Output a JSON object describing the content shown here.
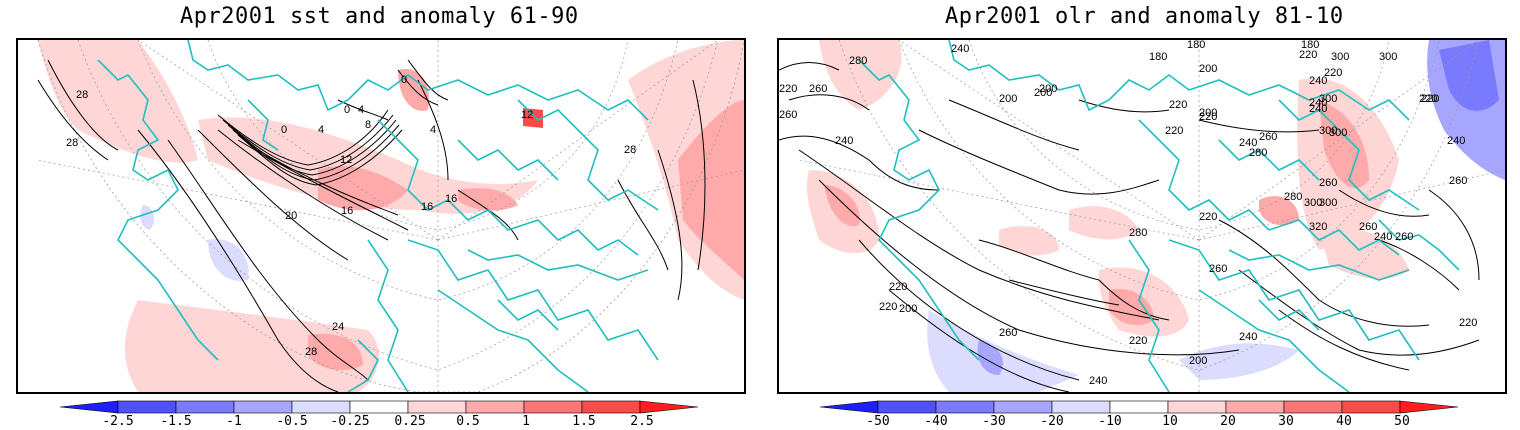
{
  "left_panel": {
    "title": "Apr2001 sst and anomaly 61-90",
    "contour_labels": [
      "28",
      "28",
      "0",
      "0",
      "0",
      "4",
      "4",
      "8",
      "4",
      "12",
      "12",
      "16",
      "16",
      "16",
      "20",
      "24",
      "28",
      "28"
    ],
    "colorbar": {
      "ticks": [
        "-2.5",
        "-1.5",
        "-1",
        "-0.5",
        "-0.25",
        "0.25",
        "0.5",
        "1",
        "1.5",
        "2.5"
      ],
      "colors": [
        "#1e1eff",
        "#5050ff",
        "#7a7aff",
        "#a6a6ff",
        "#dcdcff",
        "#ffffff",
        "#ffd6d6",
        "#ffaaaa",
        "#ff7474",
        "#ff4a4a",
        "#ff1e1e"
      ]
    }
  },
  "right_panel": {
    "title": "Apr2001 olr and anomaly 81-10",
    "contour_labels": [
      "240",
      "180",
      "180",
      "220",
      "300",
      "280",
      "180",
      "220",
      "300",
      "200",
      "240",
      "260",
      "220",
      "200",
      "200",
      "220",
      "240",
      "200",
      "220",
      "240",
      "300",
      "220",
      "260",
      "220",
      "200",
      "220",
      "300",
      "240",
      "240",
      "240",
      "280",
      "300",
      "260",
      "260",
      "260",
      "300",
      "320",
      "260",
      "240",
      "260",
      "220",
      "280",
      "300",
      "280",
      "260",
      "220",
      "220",
      "200",
      "240",
      "220",
      "260",
      "220",
      "200",
      "240"
    ],
    "colorbar": {
      "ticks": [
        "-50",
        "-40",
        "-30",
        "-20",
        "-10",
        "10",
        "20",
        "30",
        "40",
        "50"
      ],
      "colors": [
        "#1e1eff",
        "#5050ff",
        "#7a7aff",
        "#a6a6ff",
        "#dcdcff",
        "#ffffff",
        "#ffd6d6",
        "#ffaaaa",
        "#ff7474",
        "#ff4a4a",
        "#ff1e1e"
      ]
    }
  },
  "colors": {
    "coast": "#1fbfbf",
    "contour": "#000000",
    "grid": "#999999"
  }
}
